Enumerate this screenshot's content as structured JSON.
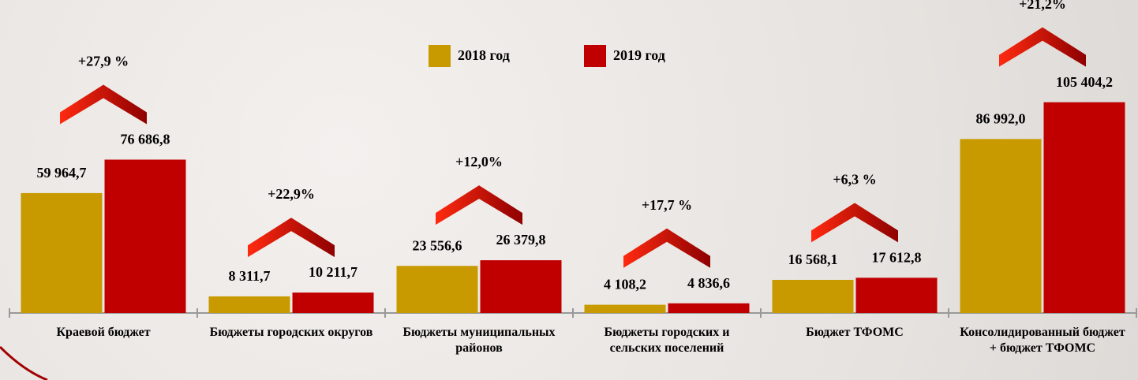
{
  "chart_data": {
    "type": "bar",
    "categories": [
      "Краевой бюджет",
      "Бюджеты городских округов",
      "Бюджеты муниципальных районов",
      "Бюджеты городских и сельских поселений",
      "Бюджет ТФОМС",
      "Консолидированный бюджет + бюджет ТФОМС"
    ],
    "series": [
      {
        "name": "2018 год",
        "color": "#c99a00",
        "values": [
          59964.7,
          8311.7,
          23556.6,
          4108.2,
          16568.1,
          86992.0
        ],
        "value_labels": [
          "59 964,7",
          "8 311,7",
          "23 556,6",
          "4 108,2",
          "16 568,1",
          "86 992,0"
        ]
      },
      {
        "name": "2019 год",
        "color": "#c00000",
        "values": [
          76686.8,
          10211.7,
          26379.8,
          4836.6,
          17612.8,
          105404.2
        ],
        "value_labels": [
          "76 686,8",
          "10 211,7",
          "26 379,8",
          "4 836,6",
          "17 612,8",
          "105 404,2"
        ]
      }
    ],
    "annotations": [
      "+27,9 %",
      "+22,9%",
      "+12,0%",
      "+17,7 %",
      "+6,3 %",
      "+21,2%"
    ],
    "ylim": [
      0,
      110000
    ],
    "legend": "top"
  }
}
